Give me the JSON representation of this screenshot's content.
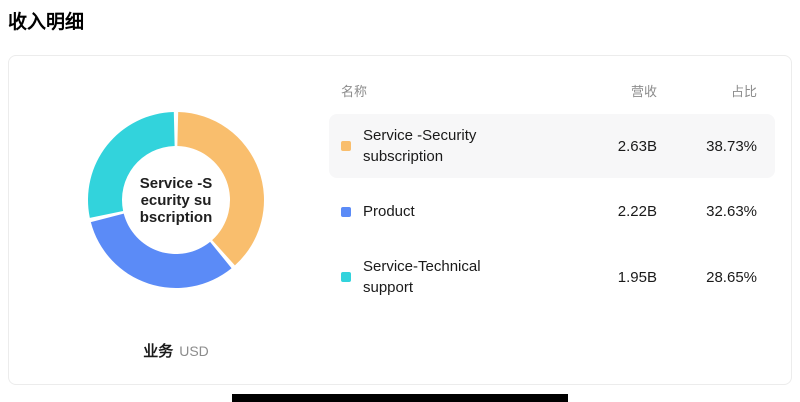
{
  "page": {
    "title": "收入明细"
  },
  "chart_data": {
    "type": "pie",
    "donut": true,
    "title": "收入明细",
    "categories": [
      "Service -Security subscription",
      "Product",
      "Service-Technical support"
    ],
    "values": [
      2.63,
      2.22,
      1.95
    ],
    "value_unit": "B",
    "currency": "USD",
    "percentages": [
      38.73,
      32.63,
      28.65
    ],
    "colors": [
      "#F9BE6D",
      "#5B8BF7",
      "#32D3DC"
    ],
    "start_angle_deg": 0,
    "direction": "clockwise",
    "center_label_lines": [
      "Service -S",
      "ecurity su",
      "bscription"
    ],
    "legend_position": "right-table"
  },
  "footer": {
    "label": "业务",
    "unit": "USD"
  },
  "table": {
    "headers": {
      "name": "名称",
      "revenue": "营收",
      "share": "占比"
    },
    "rows": [
      {
        "name": "Service -Security subscription",
        "revenue": "2.63B",
        "share": "38.73%",
        "color": "#F9BE6D",
        "highlighted": true
      },
      {
        "name": "Product",
        "revenue": "2.22B",
        "share": "32.63%",
        "color": "#5B8BF7",
        "highlighted": false
      },
      {
        "name": "Service-Technical support",
        "revenue": "1.95B",
        "share": "28.65%",
        "color": "#32D3DC",
        "highlighted": false
      }
    ]
  }
}
